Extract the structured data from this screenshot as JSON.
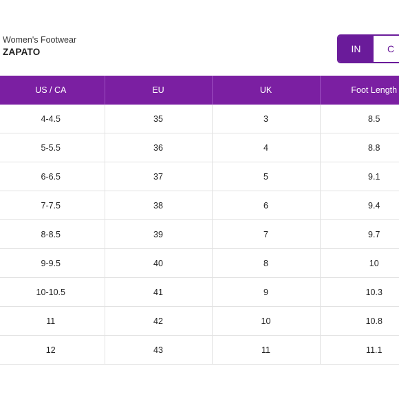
{
  "header": {
    "subtitle": "Women's Footwear",
    "brand": "ZAPATO"
  },
  "unit_toggle": {
    "options": [
      "IN",
      "C"
    ],
    "selected": "IN"
  },
  "colors": {
    "accent": "#7b1fa2",
    "accent_dark": "#6a1b9a"
  },
  "table": {
    "headers": [
      "US / CA",
      "EU",
      "UK",
      "Foot Length"
    ],
    "rows": [
      [
        "4-4.5",
        "35",
        "3",
        "8.5"
      ],
      [
        "5-5.5",
        "36",
        "4",
        "8.8"
      ],
      [
        "6-6.5",
        "37",
        "5",
        "9.1"
      ],
      [
        "7-7.5",
        "38",
        "6",
        "9.4"
      ],
      [
        "8-8.5",
        "39",
        "7",
        "9.7"
      ],
      [
        "9-9.5",
        "40",
        "8",
        "10"
      ],
      [
        "10-10.5",
        "41",
        "9",
        "10.3"
      ],
      [
        "11",
        "42",
        "10",
        "10.8"
      ],
      [
        "12",
        "43",
        "11",
        "11.1"
      ]
    ]
  }
}
